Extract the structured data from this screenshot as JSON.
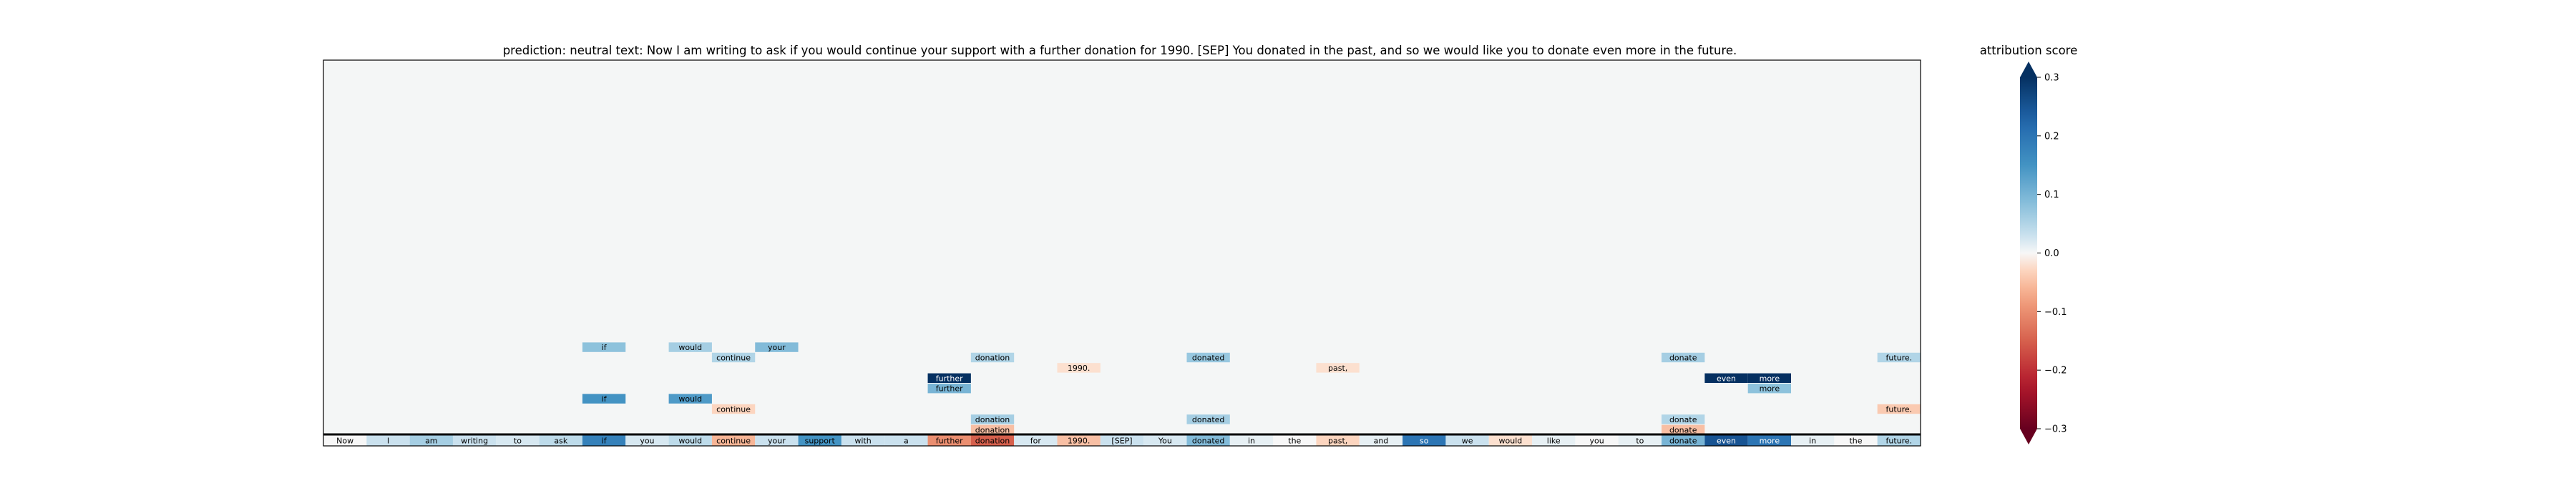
{
  "chart_data": {
    "type": "heatmap",
    "title": "prediction:  neutral     text:  Now I am writing to ask if you would continue your support with a further donation for 1990. [SEP] You donated in the past, and so we would like you to donate even more in the future.",
    "colorbar_label": "attribution score",
    "colormap": "RdBu (diverging, red = negative, blue = positive)",
    "vmin": -0.3,
    "vmax": 0.3,
    "colorbar_ticks": [
      "0.3",
      "0.2",
      "0.1",
      "0.0",
      "−0.1",
      "−0.2",
      "−0.3"
    ],
    "colorbar_tick_values": [
      0.3,
      0.2,
      0.1,
      0.0,
      -0.1,
      -0.2,
      -0.3
    ],
    "colors": {
      "background": "#f4f6f6",
      "positive": "#053061",
      "negative": "#67001f",
      "neutral": "#f7f7f7"
    },
    "tokens": [
      "Now",
      "I",
      "am",
      "writing",
      "to",
      "ask",
      "if",
      "you",
      "would",
      "continue",
      "your",
      "support",
      "with",
      "a",
      "further",
      "donation",
      "for",
      "1990.",
      "[SEP]",
      "You",
      "donated",
      "in",
      "the",
      "past,",
      "and",
      "so",
      "we",
      "would",
      "like",
      "you",
      "to",
      "donate",
      "even",
      "more",
      "in",
      "the",
      "future."
    ],
    "token_scores": [
      0.0,
      0.03,
      0.06,
      0.03,
      0.02,
      0.04,
      0.18,
      0.02,
      0.04,
      -0.06,
      0.03,
      0.15,
      0.03,
      0.03,
      -0.1,
      -0.15,
      0.02,
      -0.05,
      0.03,
      0.02,
      0.09,
      0.01,
      0.0,
      -0.03,
      0.01,
      0.2,
      0.03,
      -0.02,
      0.01,
      0.0,
      0.01,
      0.1,
      0.25,
      0.2,
      0.01,
      0.0,
      0.05
    ],
    "row_count": 36,
    "rows_shown_from_top": [
      {
        "row": 27,
        "cells": [
          {
            "token": 6,
            "text": "if",
            "score": 0.08
          },
          {
            "token": 8,
            "text": "would",
            "score": 0.06
          },
          {
            "token": 10,
            "text": "your",
            "score": 0.09
          }
        ]
      },
      {
        "row": 28,
        "cells": [
          {
            "token": 9,
            "text": "continue",
            "score": 0.05
          },
          {
            "token": 15,
            "text": "donation",
            "score": 0.05
          },
          {
            "token": 20,
            "text": "donated",
            "score": 0.07
          },
          {
            "token": 31,
            "text": "donate",
            "score": 0.06
          },
          {
            "token": 36,
            "text": "future.",
            "score": 0.05
          }
        ]
      },
      {
        "row": 29,
        "cells": [
          {
            "token": 17,
            "text": "1990.",
            "score": -0.02
          },
          {
            "token": 23,
            "text": "past,",
            "score": -0.02
          }
        ]
      },
      {
        "row": 30,
        "cells": [
          {
            "token": 14,
            "text": "further",
            "score": 0.3
          },
          {
            "token": 32,
            "text": "even",
            "score": 0.3
          },
          {
            "token": 33,
            "text": "more",
            "score": 0.3
          }
        ]
      },
      {
        "row": 31,
        "cells": [
          {
            "token": 14,
            "text": "further",
            "score": 0.1
          },
          {
            "token": 33,
            "text": "more",
            "score": 0.08
          }
        ]
      },
      {
        "row": 32,
        "cells": [
          {
            "token": 6,
            "text": "if",
            "score": 0.15
          },
          {
            "token": 8,
            "text": "would",
            "score": 0.14
          }
        ]
      },
      {
        "row": 33,
        "cells": [
          {
            "token": 9,
            "text": "continue",
            "score": -0.03
          },
          {
            "token": 36,
            "text": "future.",
            "score": -0.04
          }
        ]
      },
      {
        "row": 34,
        "cells": [
          {
            "token": 15,
            "text": "donation",
            "score": 0.06
          },
          {
            "token": 20,
            "text": "donated",
            "score": 0.06
          },
          {
            "token": 31,
            "text": "donate",
            "score": 0.05
          }
        ]
      },
      {
        "row": 35,
        "cells": [
          {
            "token": 15,
            "text": "donation",
            "score": -0.05
          },
          {
            "token": 31,
            "text": "donate",
            "score": -0.05
          }
        ]
      }
    ],
    "grid": false
  }
}
